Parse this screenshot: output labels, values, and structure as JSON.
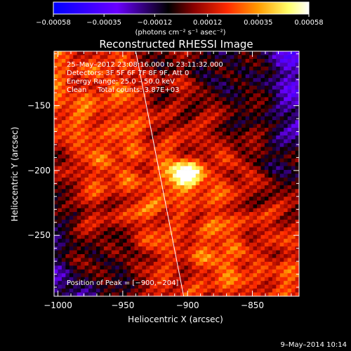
{
  "chart_data": [
    {
      "type": "heatmap",
      "role": "colorbar",
      "colormap": [
        "#0000ff",
        "#6a00ff",
        "#000000",
        "#8a0000",
        "#ff2a00",
        "#ff9a00",
        "#ffff6a",
        "#ffffff"
      ],
      "range": [
        -0.00058,
        0.00058
      ],
      "ticks": [
        -0.00058,
        -0.00035,
        -0.00012,
        0.00012,
        0.00035,
        0.00058
      ],
      "tick_labels": [
        "−0.00058",
        "−0.00035",
        "−0.00012",
        "0.00012",
        "0.00035",
        "0.00058"
      ],
      "unit_label": "(photons cm⁻² s⁻¹ asec⁻²)"
    },
    {
      "type": "heatmap",
      "title": "Reconstructed RHESSI Image",
      "xlabel": "Heliocentric X (arcsec)",
      "ylabel": "Heliocentric Y (arcsec)",
      "xlim": [
        -1003,
        -814
      ],
      "ylim": [
        -297,
        -108
      ],
      "x_ticks": [
        -1000,
        -950,
        -900,
        -850
      ],
      "x_tick_labels": [
        "−1000",
        "−950",
        "−900",
        "−850"
      ],
      "y_ticks": [
        -250,
        -200,
        -150
      ],
      "y_tick_labels": [
        "−250",
        "−200",
        "−150"
      ],
      "peak": [
        -900,
        -204
      ],
      "annotations": [
        "25–May–2012 23:08:16.000 to 23:11:32.000",
        "Detectors: 3F 5F 6F 7F 8F 9F, Att 0",
        "Energy Range: 25.0 – 50.0 keV",
        "Clean     Total counts: 3.87E+03"
      ],
      "peak_label": "Position of Peak = [−900,−204]",
      "limb": [
        [
          -940,
          -108
        ],
        [
          -903,
          -297
        ]
      ]
    }
  ],
  "footer": {
    "timestamp": "9–May–2014 10:14"
  }
}
